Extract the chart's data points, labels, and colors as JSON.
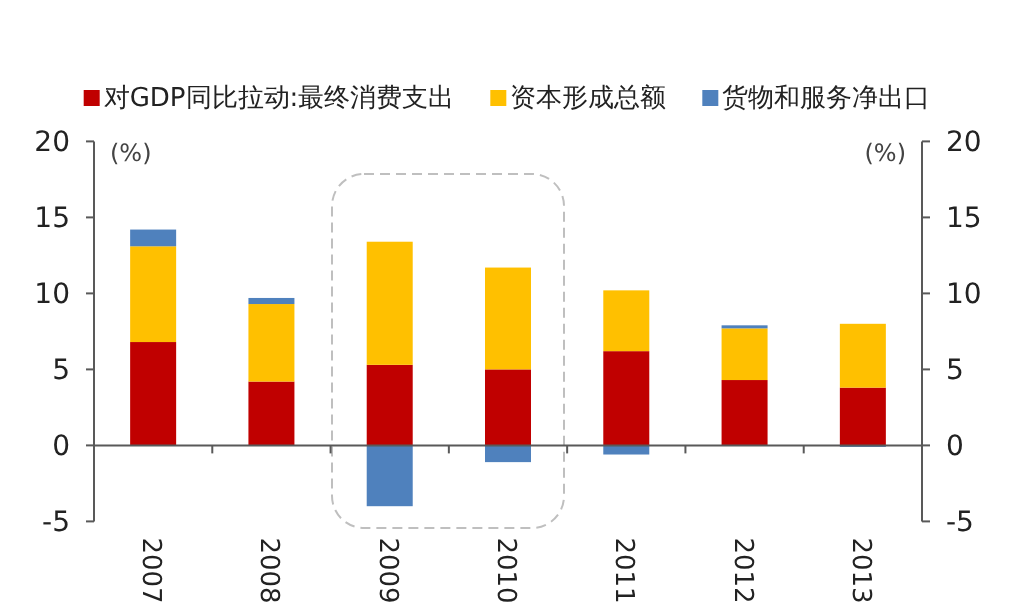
{
  "chart_data": {
    "type": "bar",
    "stacked": true,
    "ylabel": "(%)",
    "y2label": "(%)",
    "categories": [
      "2007",
      "2008",
      "2009",
      "2010",
      "2011",
      "2012",
      "2013"
    ],
    "series": [
      {
        "name": "对GDP同比拉动:最终消费支出",
        "color": "#c00000",
        "values": [
          6.8,
          4.2,
          5.3,
          5.0,
          6.2,
          4.3,
          3.8
        ]
      },
      {
        "name": "资本形成总额",
        "color": "#ffc000",
        "values": [
          6.3,
          5.1,
          8.1,
          6.7,
          4.0,
          3.4,
          4.2
        ]
      },
      {
        "name": "货物和服务净出口",
        "color": "#4f81bd",
        "values": [
          1.1,
          0.4,
          -4.0,
          -1.1,
          -0.6,
          0.2,
          -0.1
        ]
      }
    ],
    "ylim": [
      -5,
      20
    ],
    "yticks": [
      -5,
      0,
      5,
      10,
      15,
      20
    ],
    "y2lim": [
      -5,
      20
    ],
    "y2ticks": [
      -5,
      0,
      5,
      10,
      15,
      20
    ],
    "legend": "top"
  }
}
